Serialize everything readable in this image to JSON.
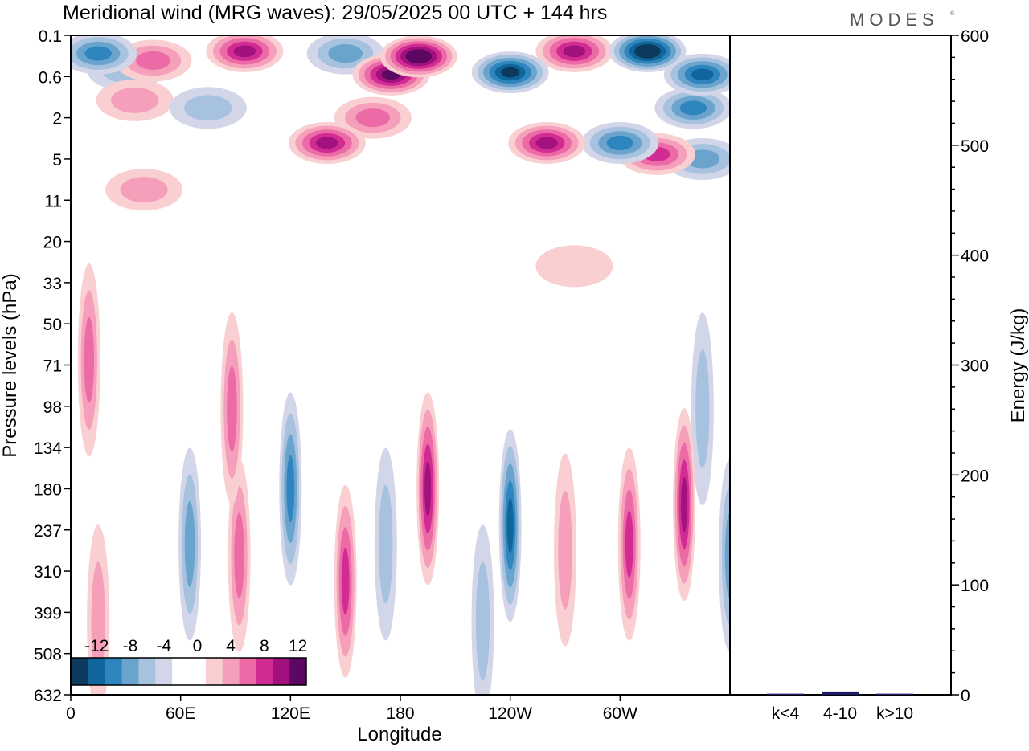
{
  "header": {
    "title": "Meridional wind (MRG waves):  29/05/2025  00 UTC  + 144 hrs",
    "brand": "MODES",
    "brand_mark": "®"
  },
  "chart_data": [
    {
      "type": "heatmap",
      "title": "Meridional wind (MRG waves):  29/05/2025  00 UTC  + 144 hrs",
      "xlabel": "Longitude",
      "ylabel": "Pressure levels (hPa)",
      "x_ticks": [
        "0",
        "60E",
        "120E",
        "180",
        "120W",
        "60W"
      ],
      "x_range_deg": [
        0,
        360
      ],
      "y_ticks": [
        "0.1",
        "0.6",
        "2",
        "5",
        "11",
        "20",
        "33",
        "50",
        "71",
        "98",
        "134",
        "180",
        "237",
        "310",
        "399",
        "508",
        "632"
      ],
      "y_scale": "pressure levels, top to bottom",
      "colorbar": {
        "tick_labels": [
          "-12",
          "-8",
          "-4",
          "0",
          "4",
          "8",
          "12"
        ],
        "levels": [
          -14,
          -12,
          -10,
          -8,
          -6,
          -4,
          -2,
          0,
          2,
          4,
          6,
          8,
          10,
          12,
          14
        ],
        "colors": [
          "#0b3a5c",
          "#10669c",
          "#2f86bf",
          "#6aa3cc",
          "#a6c2df",
          "#d3d6e8",
          "#ffffff",
          "#ffffff",
          "#f9cfd1",
          "#f59fba",
          "#ec6aa6",
          "#d02c91",
          "#a3117e",
          "#5c0863"
        ],
        "placement": "bottom-left"
      },
      "features": [
        {
          "lon": 15,
          "p": 0.22,
          "v": -8
        },
        {
          "lon": 30,
          "p": 0.45,
          "v": -5
        },
        {
          "lon": 95,
          "p": 0.2,
          "v": 10
        },
        {
          "lon": 45,
          "p": 0.3,
          "v": 6
        },
        {
          "lon": 150,
          "p": 0.22,
          "v": -6
        },
        {
          "lon": 190,
          "p": 0.25,
          "v": 14
        },
        {
          "lon": 175,
          "p": 0.55,
          "v": 12
        },
        {
          "lon": 240,
          "p": 0.5,
          "v": -12
        },
        {
          "lon": 275,
          "p": 0.2,
          "v": 10
        },
        {
          "lon": 315,
          "p": 0.2,
          "v": -14
        },
        {
          "lon": 345,
          "p": 0.55,
          "v": -10
        },
        {
          "lon": 35,
          "p": 1.2,
          "v": 5
        },
        {
          "lon": 75,
          "p": 1.5,
          "v": -5
        },
        {
          "lon": 140,
          "p": 3.5,
          "v": 10
        },
        {
          "lon": 165,
          "p": 2.0,
          "v": 7
        },
        {
          "lon": 260,
          "p": 3.5,
          "v": 11
        },
        {
          "lon": 300,
          "p": 3.5,
          "v": -9
        },
        {
          "lon": 320,
          "p": 4.5,
          "v": 8
        },
        {
          "lon": 340,
          "p": 1.5,
          "v": -9
        },
        {
          "lon": 345,
          "p": 5,
          "v": -7
        },
        {
          "lon": 40,
          "p": 9,
          "v": 4
        },
        {
          "lon": 275,
          "p": 27,
          "v": 3
        },
        {
          "lon": 10,
          "p": 68,
          "v": 6
        },
        {
          "lon": 88,
          "p": 100,
          "v": 7
        },
        {
          "lon": 65,
          "p": 260,
          "v": -7
        },
        {
          "lon": 92,
          "p": 280,
          "v": 6
        },
        {
          "lon": 120,
          "p": 180,
          "v": -9
        },
        {
          "lon": 150,
          "p": 330,
          "v": 9
        },
        {
          "lon": 172,
          "p": 260,
          "v": -5
        },
        {
          "lon": 195,
          "p": 180,
          "v": 10
        },
        {
          "lon": 240,
          "p": 230,
          "v": -10
        },
        {
          "lon": 305,
          "p": 260,
          "v": 9
        },
        {
          "lon": 335,
          "p": 200,
          "v": 11
        },
        {
          "lon": 360,
          "p": 280,
          "v": -7
        },
        {
          "lon": 15,
          "p": 420,
          "v": 5
        },
        {
          "lon": 225,
          "p": 420,
          "v": -5
        },
        {
          "lon": 270,
          "p": 270,
          "v": 5
        },
        {
          "lon": 345,
          "p": 100,
          "v": -5
        }
      ]
    },
    {
      "type": "bar",
      "ylabel": "Energy (J/kg)",
      "categories": [
        "k<4",
        "4-10",
        "k>10"
      ],
      "values": [
        1,
        3,
        1
      ],
      "ylim": [
        0,
        600
      ],
      "y_ticks": [
        "0",
        "100",
        "200",
        "300",
        "400",
        "500",
        "600"
      ],
      "colors": [
        "#1a1a66",
        "#1a1a66",
        "#1a1a66"
      ]
    }
  ]
}
